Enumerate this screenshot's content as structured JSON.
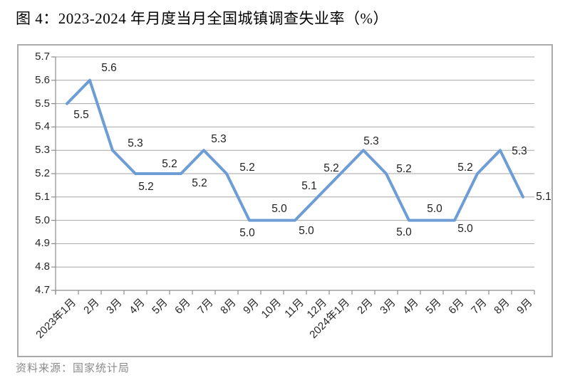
{
  "title": "图 4：2023-2024 年月度当月全国城镇调查失业率（%）",
  "source_note": "资料来源：国家统计局",
  "chart_data": {
    "type": "line",
    "title": "图 4：2023-2024 年月度当月全国城镇调查失业率（%）",
    "categories": [
      "2023年1月",
      "2月",
      "3月",
      "4月",
      "5月",
      "6月",
      "7月",
      "8月",
      "9月",
      "10月",
      "11月",
      "12月",
      "2024年1月",
      "2月",
      "3月",
      "4月",
      "5月",
      "6月",
      "7月",
      "8月",
      "9月"
    ],
    "values": [
      5.5,
      5.6,
      5.3,
      5.2,
      5.2,
      5.2,
      5.3,
      5.2,
      5.0,
      5.0,
      5.0,
      5.1,
      5.2,
      5.3,
      5.2,
      5.0,
      5.0,
      5.0,
      5.2,
      5.3,
      5.1
    ],
    "data_labels": [
      "5.5",
      "5.6",
      "5.3",
      "5.2",
      "5.2",
      "5.2",
      "5.3",
      "5.2",
      "5.0",
      "5.0",
      "5.0",
      "5.1",
      "5.2",
      "5.3",
      "5.2",
      "5.0",
      "5.0",
      "5.0",
      "5.2",
      "5.3",
      "5.1"
    ],
    "xlabel": "",
    "ylabel": "",
    "ylim": [
      4.7,
      5.7
    ],
    "ytick_step": 0.1,
    "ytick_labels": [
      "5.7",
      "5.6",
      "5.5",
      "5.4",
      "5.3",
      "5.2",
      "5.1",
      "5.0",
      "4.9",
      "4.8",
      "4.7"
    ],
    "grid": true,
    "legend": "none",
    "colors": {
      "line": "#6d9dd4",
      "grid": "#a6a6a6",
      "axis": "#8c8c8c",
      "tick_text": "#262626",
      "data_label_text": "#1f1f1f",
      "frame_border": "#ababab",
      "title_text": "#000000",
      "source_text": "#8a8a8a"
    }
  }
}
